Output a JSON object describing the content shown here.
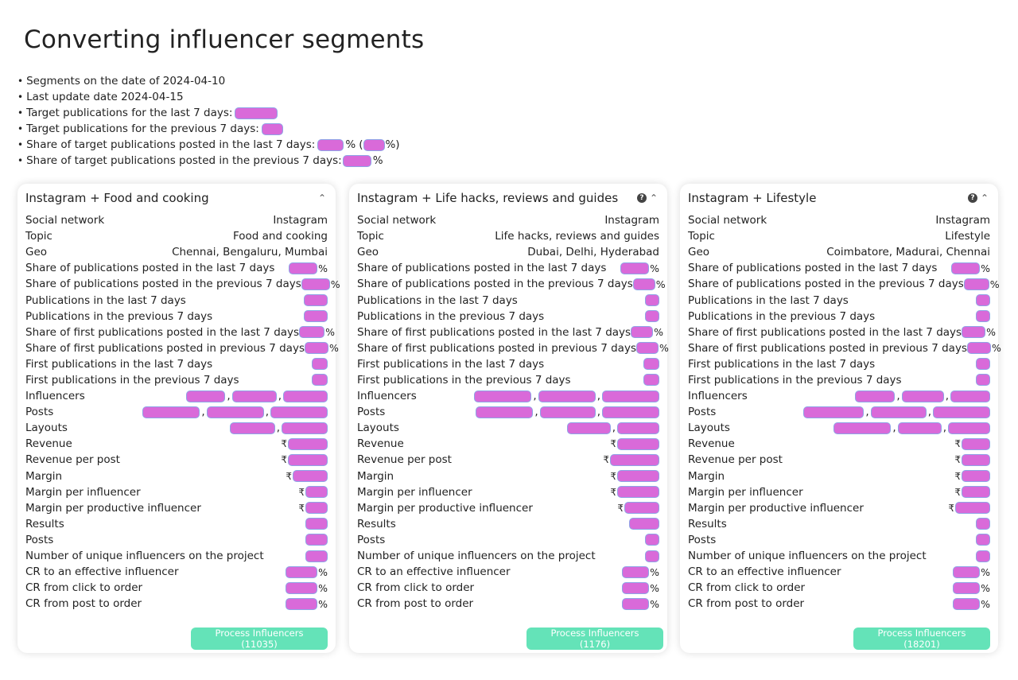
{
  "page_title": "Converting influencer segments",
  "summary": {
    "segments_date": "Segments on the date of 2024-04-10",
    "last_update": "Last update date 2024-04-15",
    "target_last7_label": "Target publications for the last 7 days:",
    "target_prev7_label": "Target publications for the previous 7 days:",
    "share_last7_label": "Share of target publications posted in the last 7 days:",
    "share_prev7_label": "Share of target publications posted in the previous 7 days:",
    "percent_sign": "%",
    "open_paren": "(",
    "close_paren": "%)"
  },
  "symbols": {
    "percent": "%",
    "rupee": "₹",
    "comma": ",",
    "help": "?",
    "chevron_up": "⌃"
  },
  "highlight_color": "#d96ad9",
  "button_color": "#64e3b8",
  "row_labels": {
    "social_network": "Social network",
    "topic": "Topic",
    "geo": "Geo",
    "share_pub_last7": "Share of publications posted in the last 7 days",
    "share_pub_prev7": "Share of publications posted in the previous 7 days",
    "pub_last7": "Publications in the last 7 days",
    "pub_prev7": "Publications in the previous 7 days",
    "share_first_last7": "Share of first publications posted in the last 7 days",
    "share_first_prev7": "Share of first publications posted in previous 7 days",
    "first_last7": "First publications in the last 7 days",
    "first_prev7": "First publications in the previous 7 days",
    "influencers": "Influencers",
    "posts": "Posts",
    "layouts": "Layouts",
    "revenue": "Revenue",
    "revenue_per_post": "Revenue per post",
    "margin": "Margin",
    "margin_per_influencer": "Margin per influencer",
    "margin_per_productive": "Margin per productive influencer",
    "results": "Results",
    "posts2": "Posts",
    "unique_influencers": "Number of unique influencers on the project",
    "cr_effective": "CR to an effective influencer",
    "cr_click": "CR from click to order",
    "cr_post": "CR from post to order"
  },
  "cards": [
    {
      "title": "Instagram + Food and cooking",
      "social_network": "Instagram",
      "topic": "Food and cooking",
      "geo": "Chennai, Bengaluru, Mumbai",
      "button_label": "Process Influencers (11035)"
    },
    {
      "title": "Instagram + Life hacks, reviews and guides",
      "social_network": "Instagram",
      "topic": "Life hacks, reviews and guides",
      "geo": "Dubai, Delhi, Hyderabad",
      "button_label": "Process Influencers (1176)"
    },
    {
      "title": "Instagram + Lifestyle",
      "social_network": "Instagram",
      "topic": "Lifestyle",
      "geo": "Coimbatore, Madurai, Chennai",
      "button_label": "Process Influencers (18201)"
    }
  ]
}
